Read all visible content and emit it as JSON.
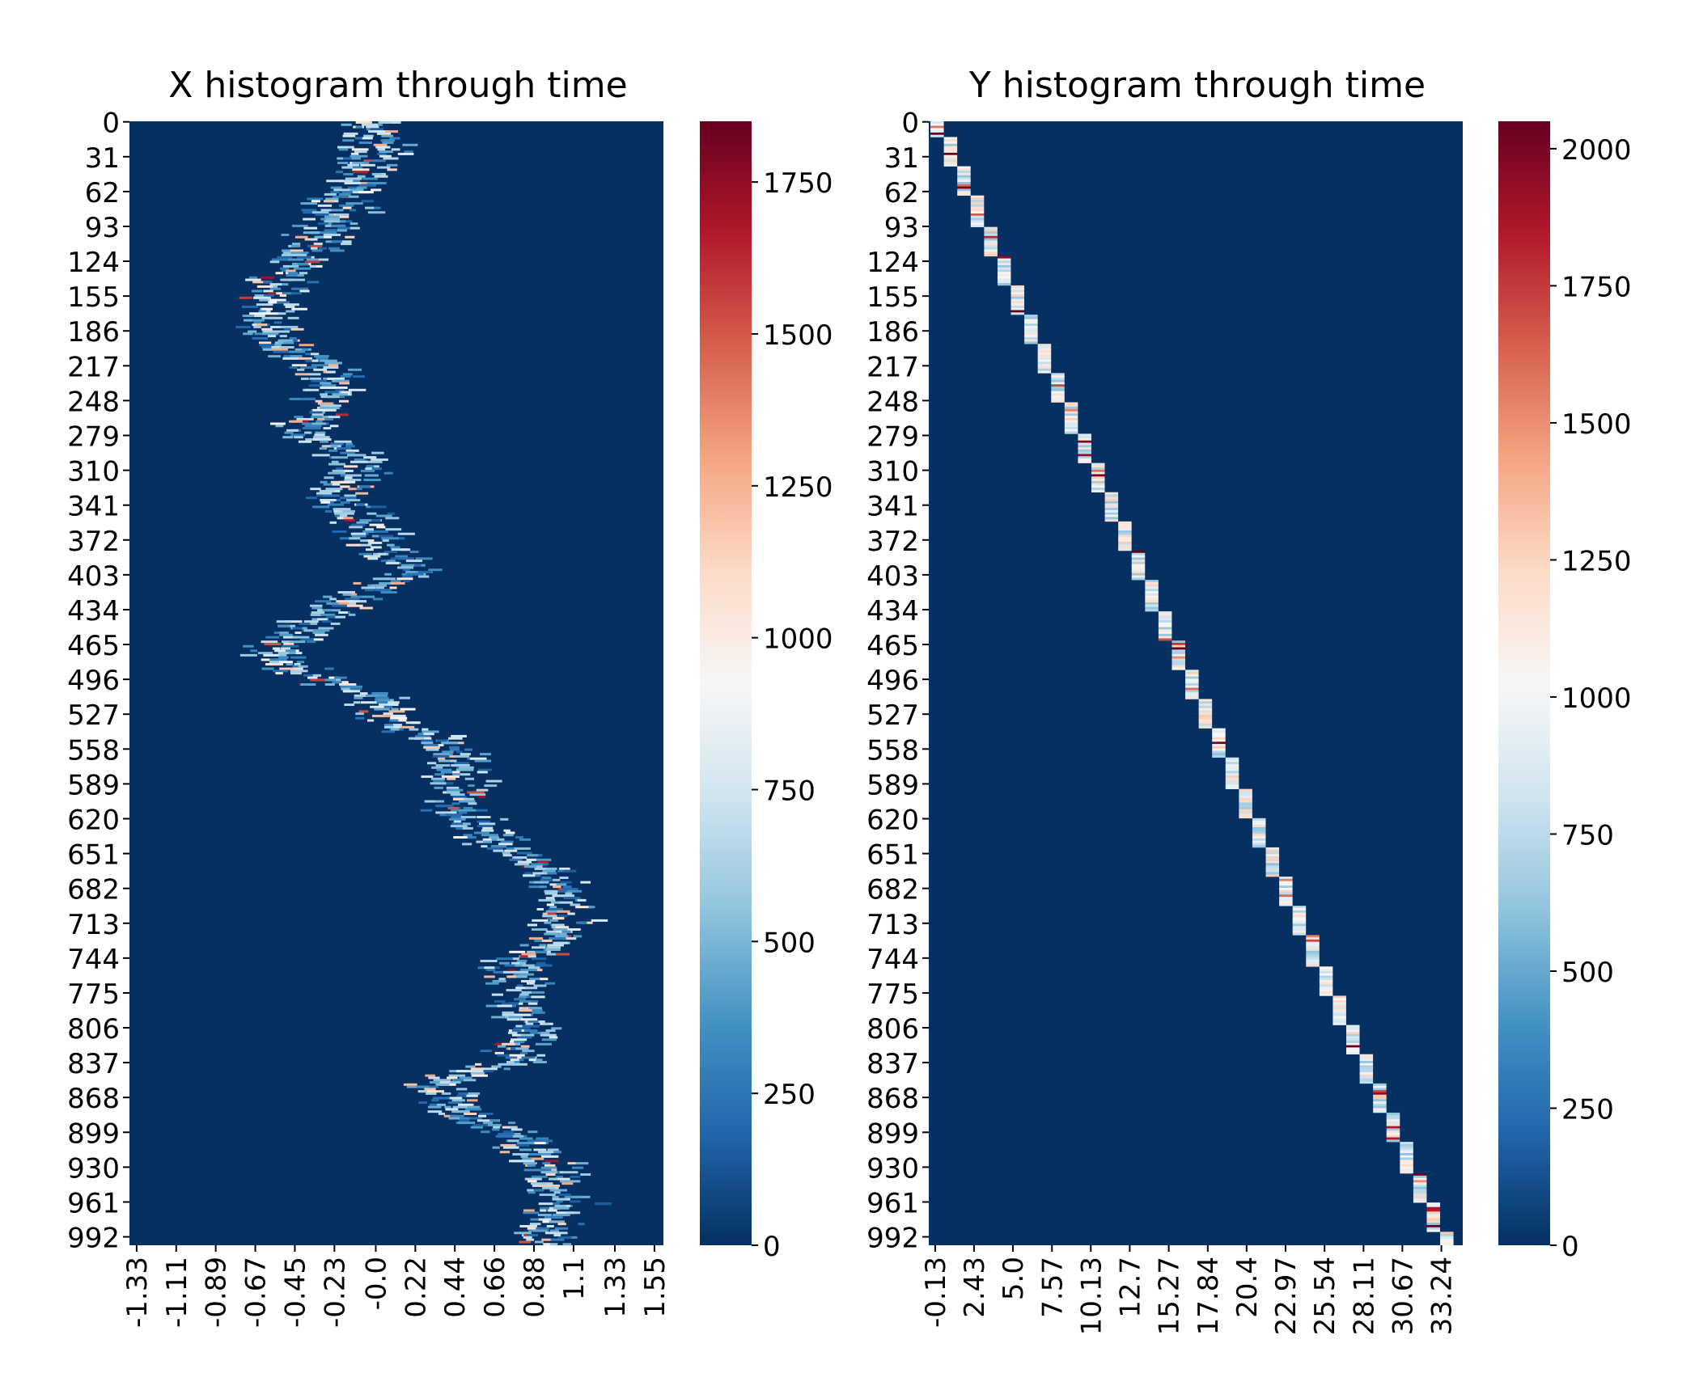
{
  "colorbar_colors": [
    "#053061",
    "#2166ac",
    "#4393c3",
    "#92c5de",
    "#d1e5f0",
    "#f7f7f7",
    "#fddbc7",
    "#f4a582",
    "#d6604d",
    "#b2182b",
    "#67001f"
  ],
  "background_color": "#053061",
  "chart_data": [
    {
      "type": "heatmap",
      "title": "X histogram through time",
      "xlabel": "",
      "ylabel": "",
      "y_tick_labels": [
        "0",
        "31",
        "62",
        "93",
        "124",
        "155",
        "186",
        "217",
        "248",
        "279",
        "310",
        "341",
        "372",
        "403",
        "434",
        "465",
        "496",
        "527",
        "558",
        "589",
        "620",
        "651",
        "682",
        "713",
        "744",
        "775",
        "806",
        "837",
        "868",
        "899",
        "930",
        "961",
        "992"
      ],
      "x_tick_labels": [
        "-1.33",
        "-1.11",
        "-0.89",
        "-0.67",
        "-0.45",
        "-0.23",
        "-0.0",
        "0.22",
        "0.44",
        "0.66",
        "0.88",
        "1.1",
        "1.33",
        "1.55"
      ],
      "row_range": [
        0,
        1000
      ],
      "x_range": [
        -1.37,
        1.6
      ],
      "colorbar": {
        "range": [
          0,
          1850
        ],
        "tick_labels": [
          "0",
          "250",
          "500",
          "750",
          "1000",
          "1250",
          "1500",
          "1750"
        ],
        "tick_values": [
          0,
          250,
          500,
          750,
          1000,
          1250,
          1500,
          1750
        ]
      },
      "trajectory_center": [
        {
          "row": 0,
          "x": -0.02
        },
        {
          "row": 30,
          "x": 0.0
        },
        {
          "row": 60,
          "x": -0.15
        },
        {
          "row": 95,
          "x": -0.25
        },
        {
          "row": 125,
          "x": -0.45
        },
        {
          "row": 150,
          "x": -0.55
        },
        {
          "row": 175,
          "x": -0.62
        },
        {
          "row": 200,
          "x": -0.52
        },
        {
          "row": 220,
          "x": -0.3
        },
        {
          "row": 250,
          "x": -0.25
        },
        {
          "row": 275,
          "x": -0.4
        },
        {
          "row": 300,
          "x": -0.1
        },
        {
          "row": 330,
          "x": -0.2
        },
        {
          "row": 360,
          "x": -0.05
        },
        {
          "row": 385,
          "x": 0.1
        },
        {
          "row": 400,
          "x": 0.2
        },
        {
          "row": 420,
          "x": -0.1
        },
        {
          "row": 445,
          "x": -0.35
        },
        {
          "row": 470,
          "x": -0.55
        },
        {
          "row": 490,
          "x": -0.4
        },
        {
          "row": 510,
          "x": -0.05
        },
        {
          "row": 530,
          "x": 0.1
        },
        {
          "row": 555,
          "x": 0.4
        },
        {
          "row": 585,
          "x": 0.5
        },
        {
          "row": 615,
          "x": 0.45
        },
        {
          "row": 640,
          "x": 0.7
        },
        {
          "row": 665,
          "x": 0.9
        },
        {
          "row": 700,
          "x": 1.05
        },
        {
          "row": 730,
          "x": 1.0
        },
        {
          "row": 750,
          "x": 0.78
        },
        {
          "row": 785,
          "x": 0.8
        },
        {
          "row": 810,
          "x": 0.88
        },
        {
          "row": 835,
          "x": 0.75
        },
        {
          "row": 855,
          "x": 0.35
        },
        {
          "row": 880,
          "x": 0.45
        },
        {
          "row": 900,
          "x": 0.8
        },
        {
          "row": 930,
          "x": 0.95
        },
        {
          "row": 960,
          "x": 1.05
        },
        {
          "row": 1000,
          "x": 0.9
        }
      ],
      "peak_max": 1800
    },
    {
      "type": "heatmap",
      "title": "Y histogram through time",
      "xlabel": "",
      "ylabel": "",
      "y_tick_labels": [
        "0",
        "31",
        "62",
        "93",
        "124",
        "155",
        "186",
        "217",
        "248",
        "279",
        "310",
        "341",
        "372",
        "403",
        "434",
        "465",
        "496",
        "527",
        "558",
        "589",
        "620",
        "651",
        "682",
        "713",
        "744",
        "775",
        "806",
        "837",
        "868",
        "899",
        "930",
        "961",
        "992"
      ],
      "x_tick_labels": [
        "-0.13",
        "2.43",
        "5.0",
        "7.57",
        "10.13",
        "12.7",
        "15.27",
        "17.84",
        "20.4",
        "22.97",
        "25.54",
        "28.11",
        "30.67",
        "33.24"
      ],
      "row_range": [
        0,
        1000
      ],
      "x_range": [
        -0.55,
        34.65
      ],
      "colorbar": {
        "range": [
          0,
          2050
        ],
        "tick_labels": [
          "0",
          "250",
          "500",
          "750",
          "1000",
          "1250",
          "1500",
          "1750",
          "2000"
        ],
        "tick_values": [
          0,
          250,
          500,
          750,
          1000,
          1250,
          1500,
          1750,
          2000
        ]
      },
      "trajectory_linear": {
        "row_start": 0,
        "x_start": 0.0,
        "row_end": 1000,
        "x_end": 33.6
      },
      "peak_max": 2000
    }
  ]
}
